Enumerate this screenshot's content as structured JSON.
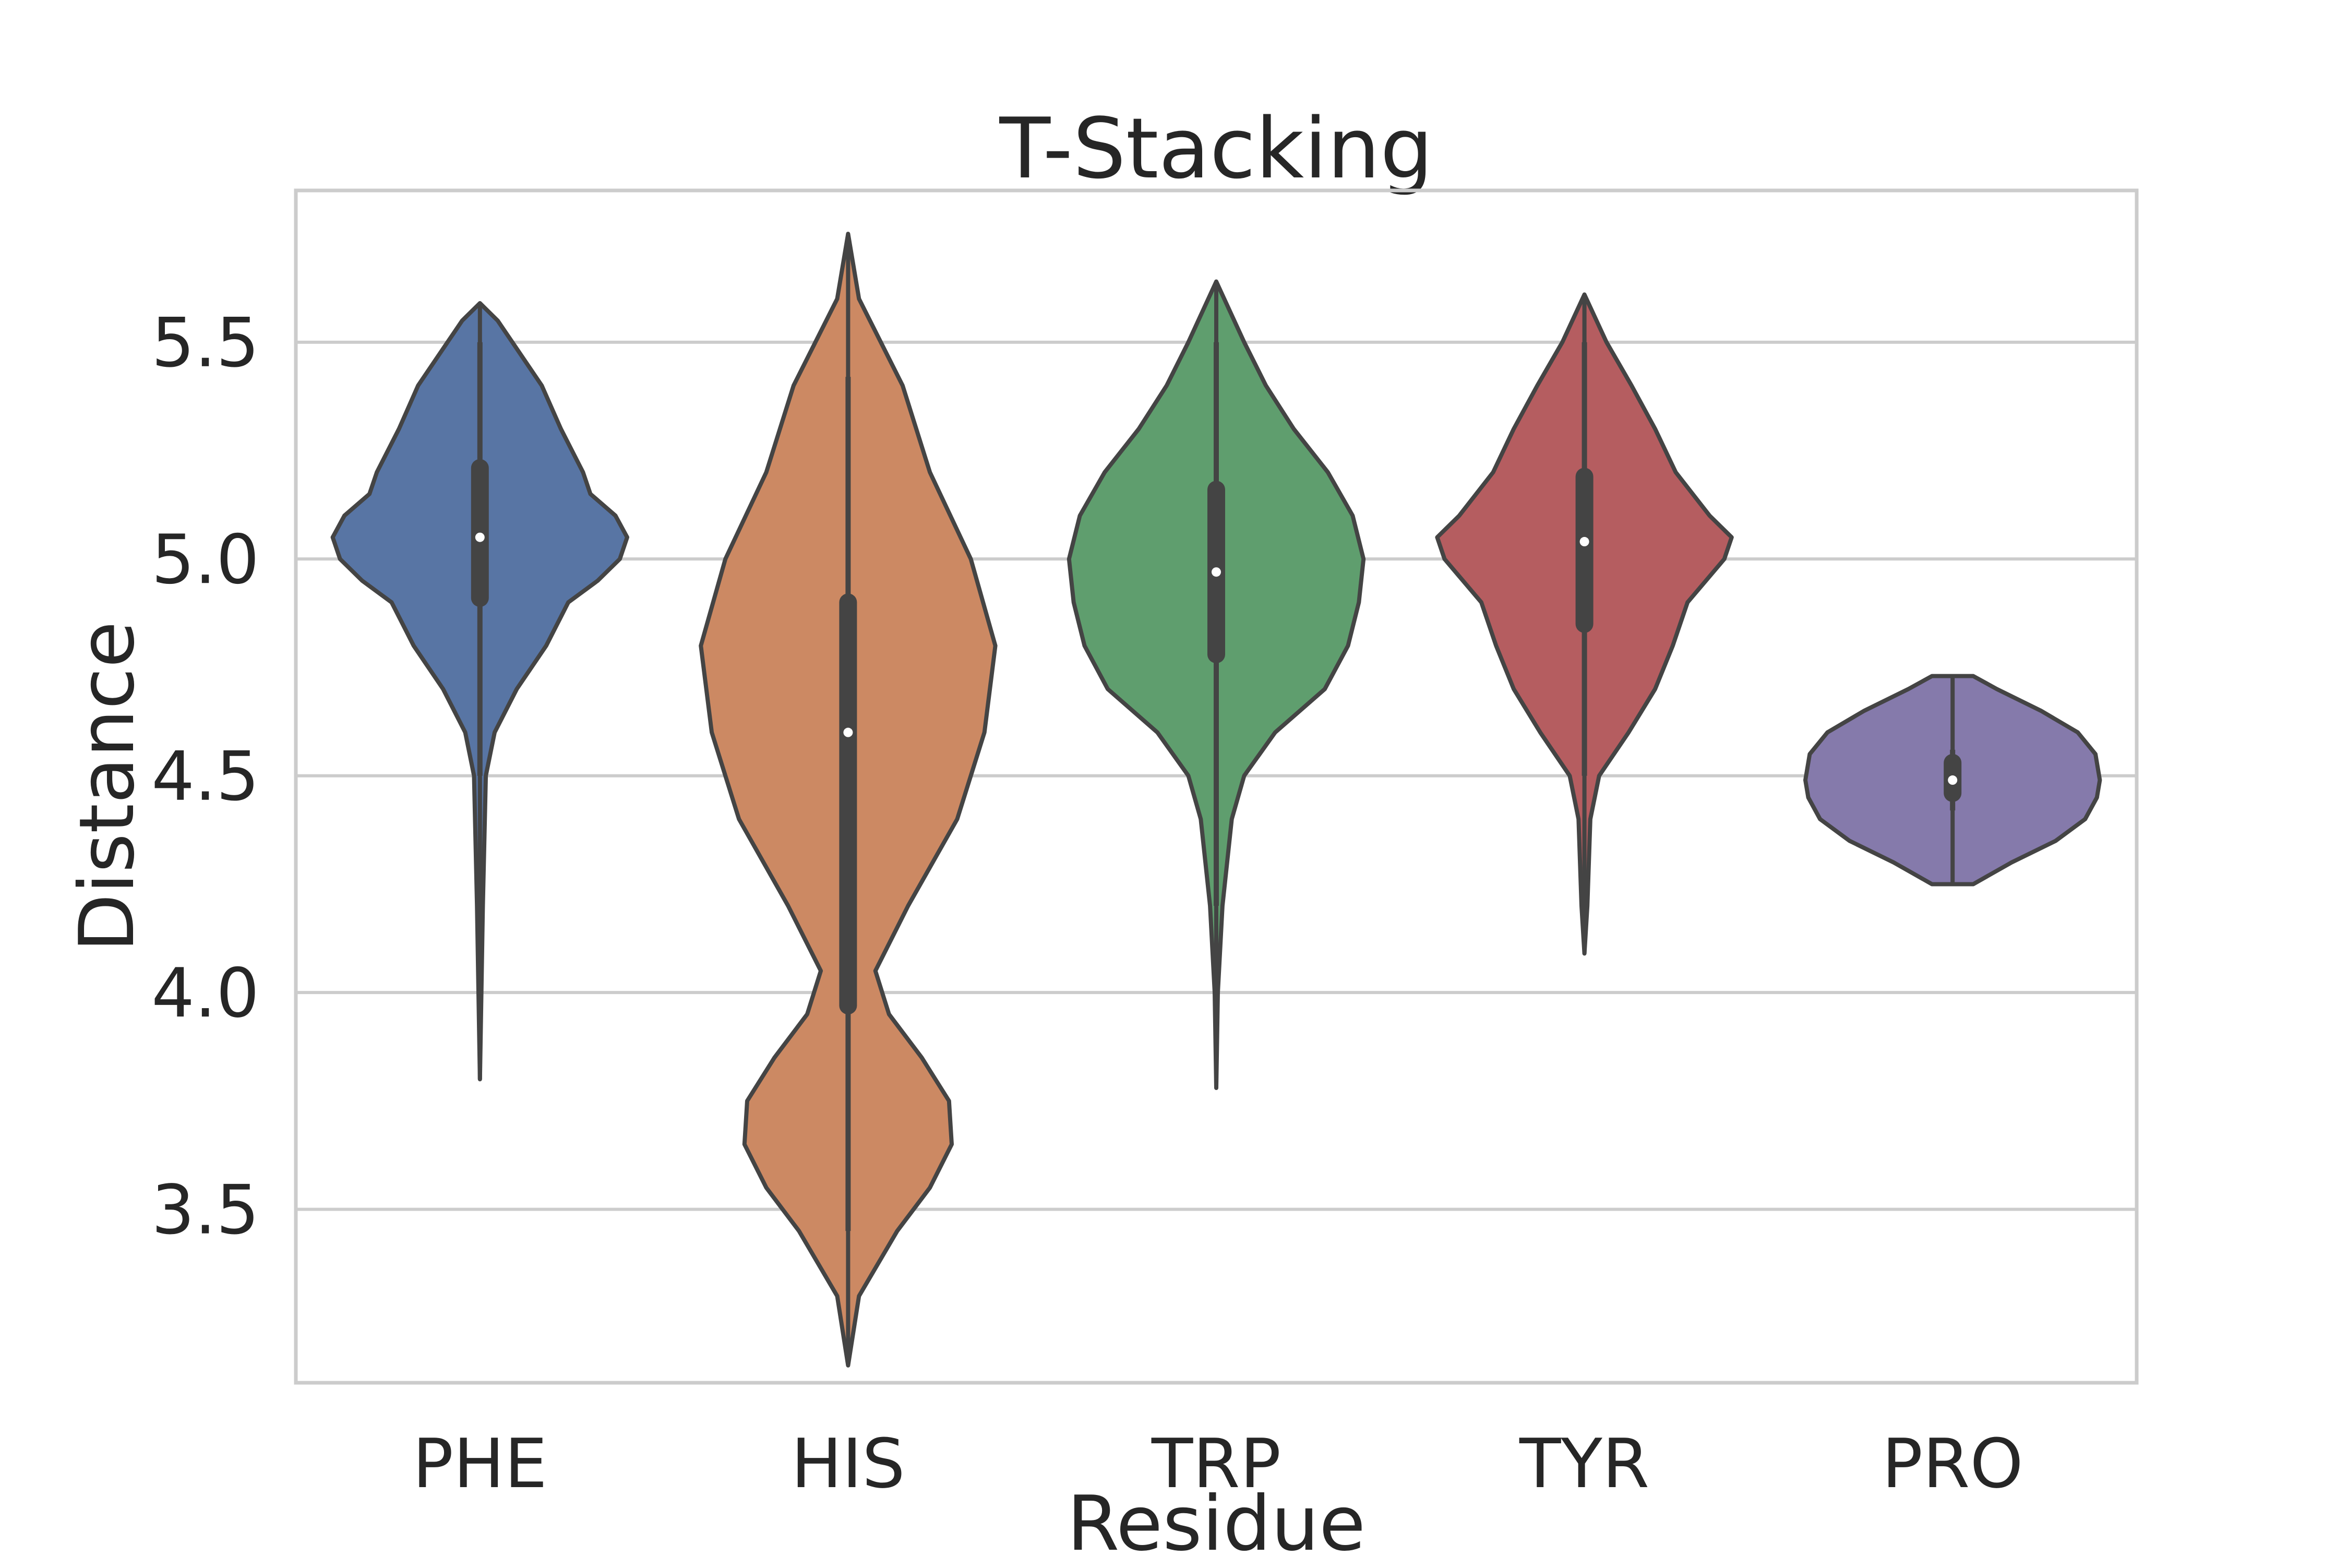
{
  "chart_data": {
    "type": "violin",
    "title": "T-Stacking",
    "xlabel": "Residue",
    "ylabel": "Distance",
    "ylim": [
      3.1,
      5.85
    ],
    "yticks": [
      "3.5",
      "4.0",
      "4.5",
      "5.0",
      "5.5"
    ],
    "grid": "horizontal",
    "categories": [
      "PHE",
      "HIS",
      "TRP",
      "TYR",
      "PRO"
    ],
    "series": [
      {
        "category": "PHE",
        "color": "#5875a4",
        "min": 3.8,
        "max": 5.59,
        "q1": 4.91,
        "median": 5.05,
        "q3": 5.21,
        "whisker_low": 4.5,
        "whisker_high": 5.5,
        "density_profile": [
          [
            3.8,
            0.0
          ],
          [
            4.2,
            0.02
          ],
          [
            4.5,
            0.04
          ],
          [
            4.6,
            0.1
          ],
          [
            4.7,
            0.25
          ],
          [
            4.8,
            0.45
          ],
          [
            4.9,
            0.6
          ],
          [
            4.95,
            0.8
          ],
          [
            5.0,
            0.95
          ],
          [
            5.05,
            1.0
          ],
          [
            5.1,
            0.92
          ],
          [
            5.15,
            0.75
          ],
          [
            5.2,
            0.7
          ],
          [
            5.3,
            0.55
          ],
          [
            5.4,
            0.42
          ],
          [
            5.5,
            0.22
          ],
          [
            5.55,
            0.12
          ],
          [
            5.59,
            0.0
          ]
        ]
      },
      {
        "category": "HIS",
        "color": "#cc8963",
        "min": 3.14,
        "max": 5.75,
        "q1": 3.97,
        "median": 4.6,
        "q3": 4.9,
        "whisker_low": 3.45,
        "whisker_high": 5.42,
        "density_profile": [
          [
            3.14,
            0.0
          ],
          [
            3.3,
            0.04
          ],
          [
            3.45,
            0.18
          ],
          [
            3.55,
            0.3
          ],
          [
            3.65,
            0.38
          ],
          [
            3.75,
            0.37
          ],
          [
            3.85,
            0.27
          ],
          [
            3.95,
            0.15
          ],
          [
            4.05,
            0.1
          ],
          [
            4.2,
            0.22
          ],
          [
            4.4,
            0.4
          ],
          [
            4.6,
            0.5
          ],
          [
            4.8,
            0.54
          ],
          [
            5.0,
            0.45
          ],
          [
            5.2,
            0.3
          ],
          [
            5.4,
            0.2
          ],
          [
            5.6,
            0.04
          ],
          [
            5.75,
            0.0
          ]
        ]
      },
      {
        "category": "TRP",
        "color": "#5f9e6e",
        "min": 3.78,
        "max": 5.64,
        "q1": 4.78,
        "median": 4.97,
        "q3": 5.16,
        "whisker_low": 4.2,
        "whisker_high": 5.5,
        "density_profile": [
          [
            3.78,
            0.0
          ],
          [
            4.0,
            0.01
          ],
          [
            4.2,
            0.04
          ],
          [
            4.4,
            0.1
          ],
          [
            4.5,
            0.18
          ],
          [
            4.6,
            0.38
          ],
          [
            4.7,
            0.7
          ],
          [
            4.8,
            0.85
          ],
          [
            4.9,
            0.92
          ],
          [
            5.0,
            0.95
          ],
          [
            5.1,
            0.88
          ],
          [
            5.2,
            0.72
          ],
          [
            5.3,
            0.5
          ],
          [
            5.4,
            0.32
          ],
          [
            5.5,
            0.18
          ],
          [
            5.64,
            0.0
          ]
        ]
      },
      {
        "category": "TYR",
        "color": "#b55d60",
        "min": 4.09,
        "max": 5.61,
        "q1": 4.85,
        "median": 5.04,
        "q3": 5.19,
        "whisker_low": 4.5,
        "whisker_high": 5.5,
        "density_profile": [
          [
            4.09,
            0.0
          ],
          [
            4.2,
            0.02
          ],
          [
            4.4,
            0.04
          ],
          [
            4.5,
            0.1
          ],
          [
            4.6,
            0.3
          ],
          [
            4.7,
            0.48
          ],
          [
            4.8,
            0.6
          ],
          [
            4.9,
            0.7
          ],
          [
            5.0,
            0.95
          ],
          [
            5.05,
            1.0
          ],
          [
            5.1,
            0.85
          ],
          [
            5.2,
            0.62
          ],
          [
            5.3,
            0.48
          ],
          [
            5.4,
            0.32
          ],
          [
            5.5,
            0.15
          ],
          [
            5.61,
            0.0
          ]
        ]
      },
      {
        "category": "PRO",
        "color": "#857aab",
        "min": 4.25,
        "max": 4.73,
        "q1": 4.46,
        "median": 4.49,
        "q3": 4.53,
        "whisker_low": 4.42,
        "whisker_high": 4.56,
        "density_profile": [
          [
            4.25,
            0.14
          ],
          [
            4.3,
            0.4
          ],
          [
            4.35,
            0.7
          ],
          [
            4.4,
            0.9
          ],
          [
            4.45,
            0.98
          ],
          [
            4.49,
            1.0
          ],
          [
            4.55,
            0.97
          ],
          [
            4.6,
            0.85
          ],
          [
            4.65,
            0.6
          ],
          [
            4.7,
            0.3
          ],
          [
            4.73,
            0.14
          ]
        ]
      }
    ]
  }
}
